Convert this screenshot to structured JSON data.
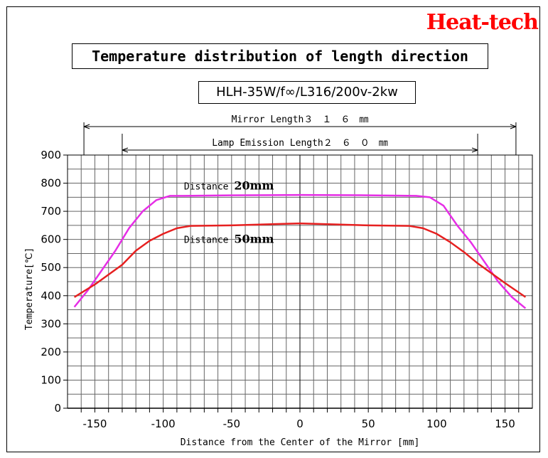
{
  "brand": "Heat-tech",
  "chart_data": {
    "type": "line",
    "title": "Temperature distribution of length direction",
    "subtitle": "HLH-35W/f∞/L316/200v-2kw",
    "xlabel": "Distance from the Center of the Mirror [mm]",
    "ylabel": "Temperature[℃]",
    "xlim": [
      -170,
      170
    ],
    "ylim": [
      0,
      900
    ],
    "x_ticks": [
      "-150",
      "-100",
      "-50",
      "0",
      "50",
      "100",
      "150"
    ],
    "y_ticks": [
      "0",
      "100",
      "200",
      "300",
      "400",
      "500",
      "600",
      "700",
      "800",
      "900"
    ],
    "grid": true,
    "dimensions": [
      {
        "label": "Mirror Length３　１　６　㎜",
        "from": -158,
        "to": 158
      },
      {
        "label": "Lamp Emission Length２　６　０　㎜",
        "from": -130,
        "to": 130
      }
    ],
    "series": [
      {
        "label_prefix": "Distance",
        "label_value": "20mm",
        "color": "#e62ee6",
        "x": [
          -165,
          -155,
          -145,
          -135,
          -125,
          -115,
          -105,
          -95,
          -85,
          -50,
          0,
          50,
          85,
          95,
          105,
          115,
          125,
          135,
          145,
          155,
          165
        ],
        "y": [
          360,
          420,
          490,
          560,
          640,
          700,
          740,
          755,
          755,
          757,
          758,
          757,
          755,
          750,
          720,
          650,
          590,
          520,
          450,
          395,
          355
        ]
      },
      {
        "label_prefix": "Distance",
        "label_value": "50mm",
        "color": "#e62020",
        "x": [
          -165,
          -150,
          -140,
          -130,
          -120,
          -110,
          -100,
          -90,
          -80,
          -50,
          0,
          50,
          80,
          90,
          100,
          110,
          120,
          130,
          140,
          150,
          165
        ],
        "y": [
          395,
          440,
          475,
          510,
          560,
          595,
          620,
          640,
          648,
          650,
          657,
          650,
          648,
          640,
          620,
          590,
          555,
          515,
          480,
          445,
          395
        ]
      }
    ]
  }
}
